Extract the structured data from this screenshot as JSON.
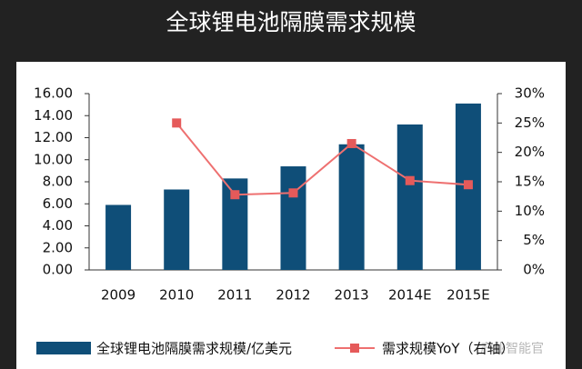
{
  "chart_data": {
    "type": "bar-line",
    "title": "全球锂电池隔膜需求规模",
    "categories": [
      "2009",
      "2010",
      "2011",
      "2012",
      "2013",
      "2014E",
      "2015E"
    ],
    "series": [
      {
        "name": "全球锂电池隔膜需求规模/亿美元",
        "type": "bar",
        "color": "#0f4e78",
        "values": [
          5.9,
          7.3,
          8.3,
          9.4,
          11.4,
          13.2,
          15.1
        ]
      },
      {
        "name": "需求规模YoY（右轴）",
        "type": "line",
        "axis": "y2",
        "color": "#ee7070",
        "marker_color": "#e55a5a",
        "values": [
          null,
          25,
          12.8,
          13.1,
          21.5,
          15.2,
          14.5
        ]
      }
    ],
    "ylim": [
      0,
      16
    ],
    "yticks": [
      {
        "value": 0,
        "label": "0.00"
      },
      {
        "value": 2,
        "label": "2.00"
      },
      {
        "value": 4,
        "label": "4.00"
      },
      {
        "value": 6,
        "label": "6.00"
      },
      {
        "value": 8,
        "label": "8.00"
      },
      {
        "value": 10,
        "label": "10.00"
      },
      {
        "value": 12,
        "label": "12.00"
      },
      {
        "value": 14,
        "label": "14.00"
      },
      {
        "value": 16,
        "label": "16.00"
      }
    ],
    "y2lim": [
      0,
      30
    ],
    "y2ticks": [
      {
        "value": 0,
        "label": "0%"
      },
      {
        "value": 5,
        "label": "5%"
      },
      {
        "value": 10,
        "label": "10%"
      },
      {
        "value": 15,
        "label": "15%"
      },
      {
        "value": 20,
        "label": "20%"
      },
      {
        "value": 25,
        "label": "25%"
      },
      {
        "value": 30,
        "label": "30%"
      }
    ],
    "grid": false,
    "legend": "bottom",
    "watermark": "产业智能官"
  }
}
